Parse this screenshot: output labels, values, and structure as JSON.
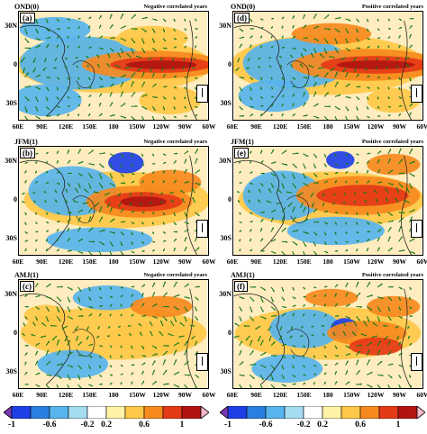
{
  "panels": [
    {
      "id": "a",
      "label": "(a)",
      "season": "OND(0)",
      "title": "Negative correlated years"
    },
    {
      "id": "d",
      "label": "(d)",
      "season": "OND(0)",
      "title": "Positive correlated years"
    },
    {
      "id": "b",
      "label": "(b)",
      "season": "JFM(1)",
      "title": "Negative correlated years"
    },
    {
      "id": "e",
      "label": "(e)",
      "season": "JFM(1)",
      "title": "Positive correlated years"
    },
    {
      "id": "c",
      "label": "(c)",
      "season": "AMJ(1)",
      "title": "Negative correlated years"
    },
    {
      "id": "f",
      "label": "(f)",
      "season": "AMJ(1)",
      "title": "Positive correlated years"
    }
  ],
  "axes": {
    "y_ticks": [
      "30N",
      "0",
      "30S"
    ],
    "x_ticks": [
      "60E",
      "90E",
      "120E",
      "150E",
      "180",
      "150W",
      "120W",
      "90W",
      "60W"
    ]
  },
  "reference_vector": "1",
  "colorbar": {
    "ticks": [
      "-1",
      "-0.6",
      "-0.2",
      "0.2",
      "0.6",
      "1"
    ],
    "colors": [
      "#7a3ab8",
      "#1f3fe6",
      "#2a7fe0",
      "#58b4ec",
      "#a5dcf2",
      "#ffffff",
      "#fff3a8",
      "#ffc848",
      "#f68a1e",
      "#e53a17",
      "#b01511",
      "#f7b8c8"
    ]
  },
  "colors": {
    "warm_core": "#b01511",
    "warm": "#e53a17",
    "orange": "#f68a1e",
    "yellow": "#ffc848",
    "cool": "#58b4ec",
    "deep_cool": "#1f3fe6",
    "vector": "#1a7a1a"
  }
}
